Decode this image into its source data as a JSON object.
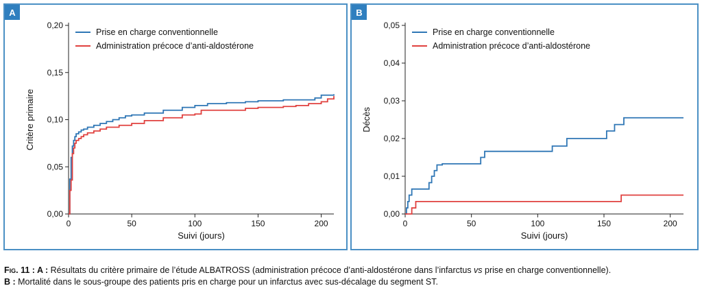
{
  "colors": {
    "frame": "#4a8fc4",
    "series_conventional": "#2e76b5",
    "series_early": "#e0403e"
  },
  "panels": [
    {
      "letter": "A"
    },
    {
      "letter": "B"
    }
  ],
  "chart_data": [
    {
      "type": "line",
      "panel": "A",
      "xlabel": "Suivi (jours)",
      "ylabel": "Critère primaire",
      "xlim": [
        0,
        210
      ],
      "ylim": [
        0,
        0.2
      ],
      "xticks": [
        0,
        50,
        100,
        150,
        200
      ],
      "xtick_labels": [
        "0",
        "50",
        "100",
        "150",
        "200"
      ],
      "yticks": [
        0,
        0.05,
        0.1,
        0.15,
        0.2
      ],
      "ytick_labels": [
        "0,00",
        "0,05",
        "0,10",
        "0,15",
        "0,20"
      ],
      "legend_position": "top-left",
      "series": [
        {
          "name": "Prise en charge conventionnelle",
          "color": "#2e76b5",
          "x": [
            0,
            1,
            2,
            3,
            4,
            5,
            6,
            8,
            10,
            12,
            15,
            20,
            25,
            30,
            35,
            40,
            45,
            50,
            60,
            75,
            90,
            100,
            110,
            125,
            140,
            150,
            170,
            195,
            200,
            210
          ],
          "y": [
            0,
            0.037,
            0.06,
            0.072,
            0.078,
            0.082,
            0.085,
            0.087,
            0.089,
            0.09,
            0.092,
            0.094,
            0.096,
            0.098,
            0.1,
            0.102,
            0.104,
            0.105,
            0.107,
            0.11,
            0.113,
            0.115,
            0.117,
            0.118,
            0.119,
            0.12,
            0.121,
            0.123,
            0.126,
            0.127
          ]
        },
        {
          "name": "Administration précoce d’anti-aldostérone",
          "color": "#e0403e",
          "x": [
            0,
            1,
            2,
            3,
            4,
            5,
            6,
            8,
            10,
            12,
            15,
            20,
            25,
            30,
            40,
            50,
            60,
            75,
            90,
            100,
            105,
            140,
            150,
            170,
            180,
            190,
            200,
            205,
            210
          ],
          "y": [
            0,
            0.025,
            0.036,
            0.064,
            0.07,
            0.075,
            0.078,
            0.08,
            0.082,
            0.084,
            0.086,
            0.088,
            0.09,
            0.092,
            0.094,
            0.096,
            0.099,
            0.102,
            0.105,
            0.106,
            0.11,
            0.112,
            0.113,
            0.114,
            0.115,
            0.117,
            0.119,
            0.122,
            0.125
          ]
        }
      ]
    },
    {
      "type": "line",
      "panel": "B",
      "xlabel": "Suivi (jours)",
      "ylabel": "Décès",
      "xlim": [
        0,
        210
      ],
      "ylim": [
        0,
        0.05
      ],
      "xticks": [
        0,
        50,
        100,
        150,
        200
      ],
      "xtick_labels": [
        "0",
        "50",
        "100",
        "150",
        "200"
      ],
      "yticks": [
        0,
        0.01,
        0.02,
        0.03,
        0.04,
        0.05
      ],
      "ytick_labels": [
        "0,00",
        "0,01",
        "0,02",
        "0,03",
        "0,04",
        "0,05"
      ],
      "legend_position": "top-left",
      "series": [
        {
          "name": "Prise en charge conventionnelle",
          "color": "#2e76b5",
          "x": [
            0,
            1,
            2,
            3,
            5,
            18,
            20,
            22,
            24,
            28,
            57,
            60,
            111,
            122,
            152,
            158,
            165,
            210
          ],
          "y": [
            0,
            0.0016,
            0.0033,
            0.005,
            0.0066,
            0.0083,
            0.01,
            0.0115,
            0.013,
            0.0133,
            0.015,
            0.0166,
            0.018,
            0.02,
            0.022,
            0.0237,
            0.0255,
            0.0255
          ]
        },
        {
          "name": "Administration précoce d’anti-aldostérone",
          "color": "#e0403e",
          "x": [
            0,
            5,
            8,
            163,
            210
          ],
          "y": [
            0,
            0.0016,
            0.0033,
            0.005,
            0.005
          ]
        }
      ]
    }
  ],
  "caption": {
    "fig_label": "Fig. 11 : A :",
    "line1_a": " Résultats du critère primaire de l’étude ALBATROSS (administration précoce d’anti-aldostérone dans l’infarctus ",
    "line1_vs": "vs",
    "line1_b": " prise en charge conventionnelle).",
    "b_label": "B :",
    "line2": " Mortalité dans le sous-groupe des patients pris en charge pour un infarctus avec sus-décalage du segment ST."
  }
}
